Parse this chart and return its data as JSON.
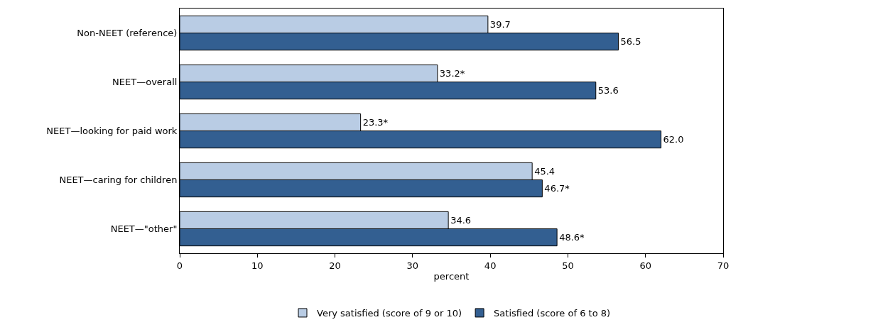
{
  "chart_data": {
    "type": "bar",
    "orientation": "horizontal",
    "categories": [
      "Non-NEET (reference)",
      "NEET—overall",
      "NEET—looking for paid work",
      "NEET—caring for children",
      "NEET—\"other\""
    ],
    "series": [
      {
        "name": "Very satisfied (score of 9 or 10)",
        "color": "#b9cce4",
        "values": [
          39.7,
          33.2,
          23.3,
          45.4,
          34.6
        ],
        "value_labels": [
          "39.7",
          "33.2*",
          "23.3*",
          "45.4",
          "34.6"
        ]
      },
      {
        "name": "Satisfied (score of 6 to 8)",
        "color": "#335f91",
        "values": [
          56.5,
          53.6,
          62.0,
          46.7,
          48.6
        ],
        "value_labels": [
          "56.5",
          "53.6",
          "62.0",
          "46.7*",
          "48.6*"
        ]
      }
    ],
    "xlabel": "percent",
    "xlim": [
      0,
      70
    ],
    "xticks": [
      0,
      10,
      20,
      30,
      40,
      50,
      60,
      70
    ],
    "grid": false,
    "legend": "bottom"
  }
}
